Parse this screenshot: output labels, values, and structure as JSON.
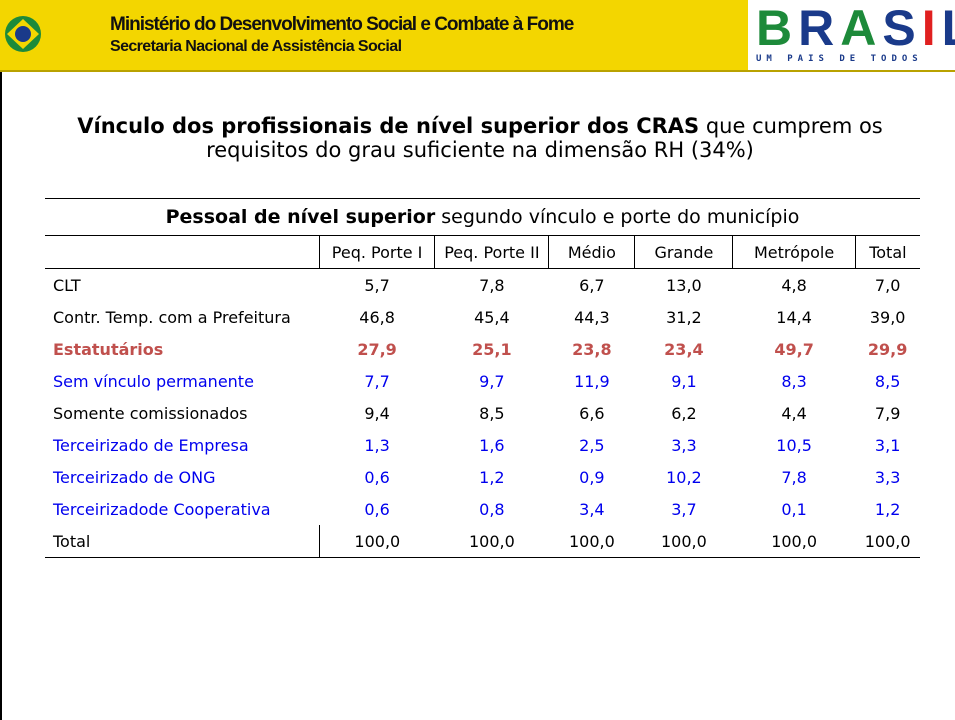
{
  "header": {
    "ministry": "Ministério do Desenvolvimento Social e Combate à Fome",
    "secretariat": "Secretaria Nacional de Assistência Social",
    "logo_word": "BRASIL",
    "logo_tagline": "UM PAIS DE TODOS"
  },
  "title": {
    "bold": "Vínculo dos profissionais de nível superior dos CRAS",
    "rest": " que cumprem os requisitos do grau suficiente na dimensão RH (34%)"
  },
  "table": {
    "caption_bold": "Pessoal de nível superior",
    "caption_rest": " segundo vínculo e porte do município",
    "columns": [
      "Peq. Porte I",
      "Peq. Porte II",
      "Médio",
      "Grande",
      "Metrópole",
      "Total"
    ],
    "rows": [
      {
        "label": "CLT",
        "values": [
          "5,7",
          "7,8",
          "6,7",
          "13,0",
          "4,8",
          "7,0"
        ],
        "color": "#000000"
      },
      {
        "label": "Contr. Temp. com a Prefeitura",
        "values": [
          "46,8",
          "45,4",
          "44,3",
          "31,2",
          "14,4",
          "39,0"
        ],
        "color": "#000000"
      },
      {
        "label": "Estatutários",
        "values": [
          "27,9",
          "25,1",
          "23,8",
          "23,4",
          "49,7",
          "29,9"
        ],
        "color": "#c0504d",
        "bold": true
      },
      {
        "label": "Sem vínculo permanente",
        "values": [
          "7,7",
          "9,7",
          "11,9",
          "9,1",
          "8,3",
          "8,5"
        ],
        "color": "#0000ee"
      },
      {
        "label": "Somente comissionados",
        "values": [
          "9,4",
          "8,5",
          "6,6",
          "6,2",
          "4,4",
          "7,9"
        ],
        "color": "#000000"
      },
      {
        "label": "Terceirizado de Empresa",
        "values": [
          "1,3",
          "1,6",
          "2,5",
          "3,3",
          "10,5",
          "3,1"
        ],
        "color": "#0000ee"
      },
      {
        "label": "Terceirizado de ONG",
        "values": [
          "0,6",
          "1,2",
          "0,9",
          "10,2",
          "7,8",
          "3,3"
        ],
        "color": "#0000ee"
      },
      {
        "label": "Terceirizadode Cooperativa",
        "values": [
          "0,6",
          "0,8",
          "3,4",
          "3,7",
          "0,1",
          "1,2"
        ],
        "color": "#0000ee"
      },
      {
        "label": "Total",
        "values": [
          "100,0",
          "100,0",
          "100,0",
          "100,0",
          "100,0",
          "100,0"
        ],
        "color": "#000000",
        "total": true
      }
    ]
  }
}
